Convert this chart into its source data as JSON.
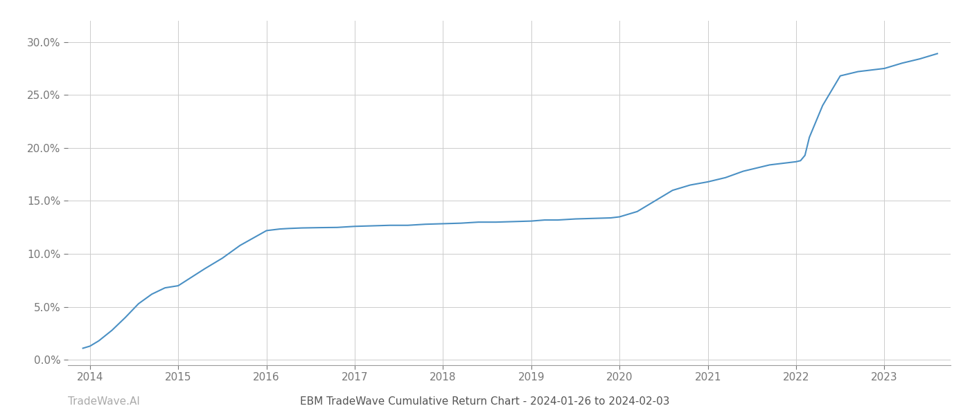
{
  "x_values": [
    2013.92,
    2014.0,
    2014.1,
    2014.25,
    2014.4,
    2014.55,
    2014.7,
    2014.85,
    2015.0,
    2015.15,
    2015.3,
    2015.5,
    2015.7,
    2015.85,
    2016.0,
    2016.15,
    2016.25,
    2016.4,
    2016.6,
    2016.8,
    2017.0,
    2017.2,
    2017.4,
    2017.6,
    2017.8,
    2018.0,
    2018.2,
    2018.4,
    2018.6,
    2018.8,
    2019.0,
    2019.15,
    2019.3,
    2019.5,
    2019.7,
    2019.9,
    2020.0,
    2020.2,
    2020.4,
    2020.6,
    2020.8,
    2021.0,
    2021.1,
    2021.2,
    2021.3,
    2021.4,
    2021.5,
    2021.6,
    2021.7,
    2021.8,
    2021.9,
    2022.0,
    2022.05,
    2022.1,
    2022.15,
    2022.3,
    2022.5,
    2022.7,
    2022.9,
    2023.0,
    2023.2,
    2023.4,
    2023.6
  ],
  "y_values": [
    0.011,
    0.013,
    0.018,
    0.028,
    0.04,
    0.053,
    0.062,
    0.068,
    0.07,
    0.078,
    0.086,
    0.096,
    0.108,
    0.115,
    0.122,
    0.1235,
    0.124,
    0.1245,
    0.1248,
    0.125,
    0.126,
    0.1265,
    0.127,
    0.127,
    0.128,
    0.1285,
    0.129,
    0.13,
    0.13,
    0.1305,
    0.131,
    0.132,
    0.132,
    0.133,
    0.1335,
    0.134,
    0.135,
    0.14,
    0.15,
    0.16,
    0.165,
    0.168,
    0.17,
    0.172,
    0.175,
    0.178,
    0.18,
    0.182,
    0.184,
    0.185,
    0.186,
    0.187,
    0.188,
    0.193,
    0.21,
    0.24,
    0.268,
    0.272,
    0.274,
    0.275,
    0.28,
    0.284,
    0.289
  ],
  "line_color": "#4a90c4",
  "line_width": 1.5,
  "title": "EBM TradeWave Cumulative Return Chart - 2024-01-26 to 2024-02-03",
  "watermark_left": "TradeWave.AI",
  "xlim": [
    2013.75,
    2023.75
  ],
  "ylim": [
    -0.005,
    0.32
  ],
  "yticks": [
    0.0,
    0.05,
    0.1,
    0.15,
    0.2,
    0.25,
    0.3
  ],
  "xticks": [
    2014,
    2015,
    2016,
    2017,
    2018,
    2019,
    2020,
    2021,
    2022,
    2023
  ],
  "grid_color": "#cccccc",
  "background_color": "#ffffff",
  "tick_label_color": "#777777",
  "title_color": "#555555",
  "watermark_color": "#aaaaaa",
  "title_fontsize": 11,
  "tick_fontsize": 11,
  "watermark_fontsize": 11
}
